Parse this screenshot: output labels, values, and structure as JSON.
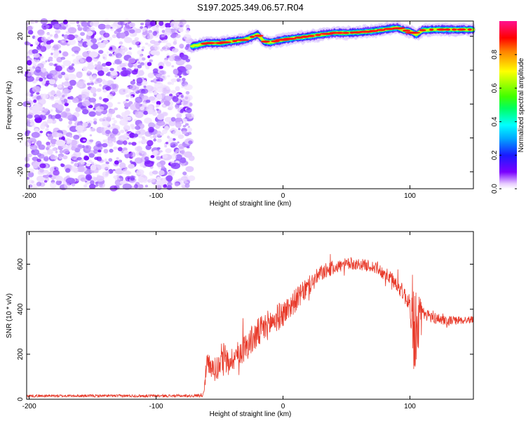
{
  "title": "S197.2025.349.06.57.R04",
  "chart_data": [
    {
      "type": "heatmap",
      "xlabel": "Height of straight line (km)",
      "ylabel": "Frequency (Hz)",
      "xlim": [
        -202,
        150
      ],
      "ylim": [
        -25,
        24.5
      ],
      "xticks": [
        -200,
        -100,
        0,
        100
      ],
      "yticks": [
        20,
        10,
        0,
        -10,
        -20
      ],
      "noise_region_x": [
        -202,
        -72
      ],
      "signal_trace": {
        "x": [
          -72,
          -60,
          -50,
          -40,
          -30,
          -20,
          -15,
          -10,
          0,
          10,
          20,
          30,
          40,
          50,
          60,
          70,
          80,
          90,
          95,
          100,
          105,
          110,
          120,
          130,
          140,
          150
        ],
        "freq": [
          17,
          18,
          18,
          18.5,
          19,
          20.5,
          18.5,
          18.2,
          19,
          19.5,
          20,
          20.5,
          21,
          21,
          21.2,
          21.5,
          22,
          22.5,
          21.8,
          21.5,
          20.5,
          21.8,
          22,
          22,
          22,
          22
        ]
      },
      "colorbar": {
        "label": "Normalized spectral amplitude",
        "ticks": [
          0.0,
          0.2,
          0.4,
          0.6,
          0.8
        ],
        "tick_labels": [
          "0.0",
          "0.2",
          "0.4",
          "0.6",
          "0.8"
        ],
        "range": [
          0,
          1
        ]
      }
    },
    {
      "type": "line",
      "xlabel": "Height of straight line (km)",
      "ylabel": "SNR (10 * v/v)",
      "xlim": [
        -202,
        150
      ],
      "ylim": [
        0,
        745
      ],
      "xticks": [
        -200,
        -100,
        0,
        100
      ],
      "yticks": [
        0,
        200,
        400,
        600
      ],
      "line_color": "#e83a2a",
      "series": [
        {
          "name": "SNR",
          "x": [
            -202,
            -150,
            -100,
            -70,
            -63,
            -60,
            -55,
            -50,
            -40,
            -30,
            -20,
            -10,
            0,
            10,
            20,
            30,
            40,
            50,
            60,
            70,
            80,
            90,
            95,
            100,
            103,
            105,
            108,
            110,
            120,
            130,
            140,
            150
          ],
          "y": [
            15,
            15,
            15,
            15,
            20,
            150,
            130,
            150,
            180,
            230,
            290,
            340,
            380,
            440,
            500,
            560,
            585,
            600,
            600,
            590,
            560,
            510,
            470,
            420,
            300,
            330,
            380,
            380,
            360,
            350,
            350,
            355
          ]
        }
      ],
      "noise_amplitude": {
        "x": [
          -202,
          -70,
          -63,
          -60,
          -40,
          -20,
          0,
          20,
          40,
          60,
          80,
          100,
          103,
          105,
          108,
          110,
          150
        ],
        "amp": [
          6,
          6,
          10,
          60,
          55,
          70,
          60,
          45,
          30,
          25,
          30,
          40,
          200,
          220,
          80,
          30,
          15
        ]
      }
    }
  ]
}
